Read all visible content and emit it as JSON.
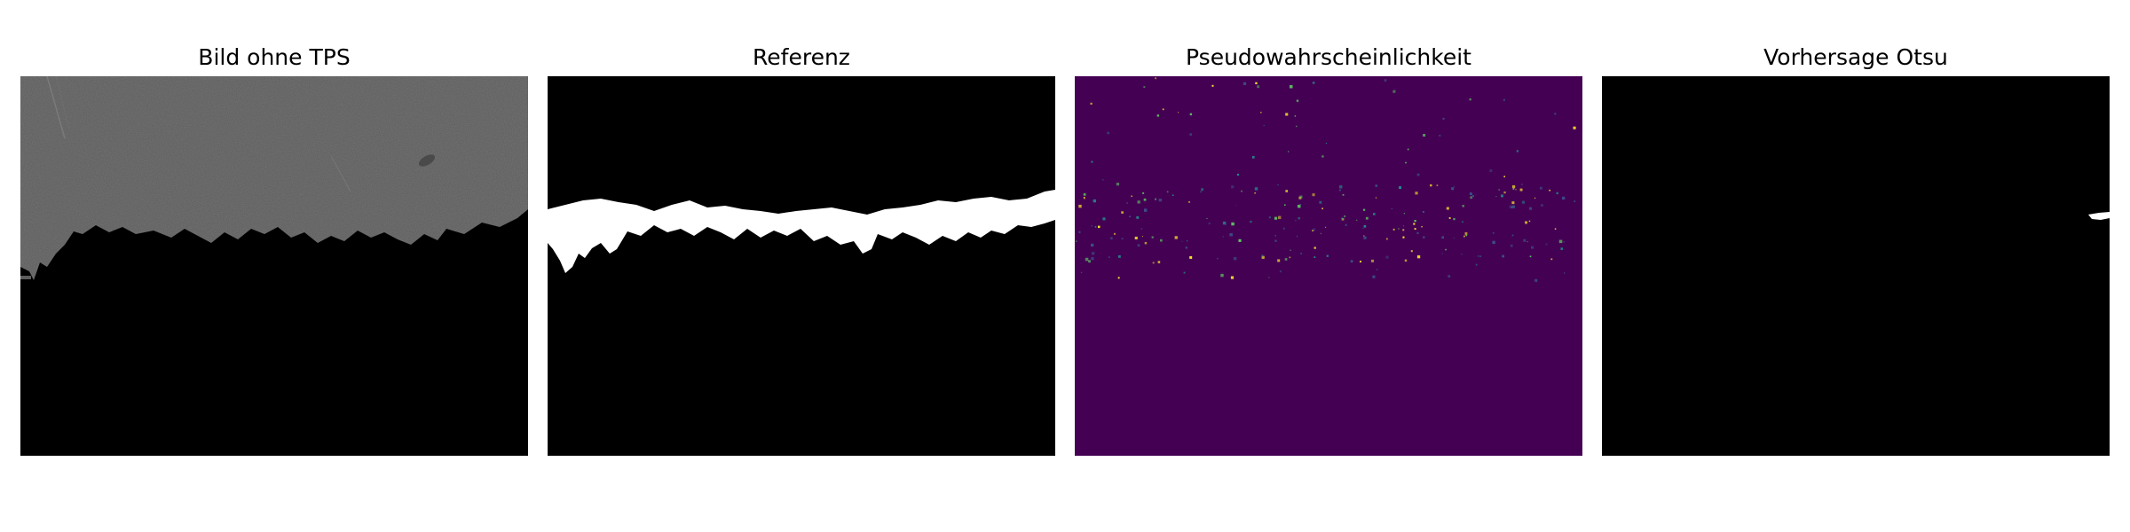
{
  "panels": [
    {
      "title": "Bild ohne TPS"
    },
    {
      "title": "Referenz"
    },
    {
      "title": "Pseudowahrscheinlichkeit"
    },
    {
      "title": "Vorhersage Otsu"
    }
  ],
  "colors": {
    "sem_gray": "#5c5c5c",
    "mask_white": "#ffffff",
    "background_black": "#000000",
    "viridis_low": "#440154",
    "viridis_mid": "#21918c",
    "viridis_high": "#fde725"
  }
}
